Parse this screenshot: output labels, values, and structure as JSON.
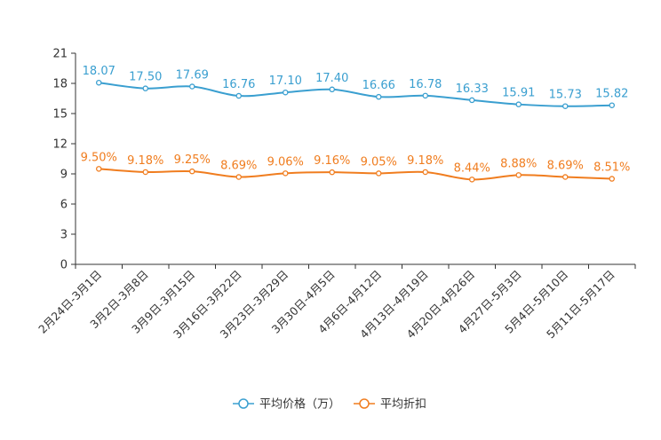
{
  "chart_data": {
    "type": "line",
    "categories": [
      "2月24日-3月1日",
      "3月2日-3月8日",
      "3月9日-3月15日",
      "3月16日-3月22日",
      "3月23日-3月29日",
      "3月30日-4月5日",
      "4月6日-4月12日",
      "4月13日-4月19日",
      "4月20日-4月26日",
      "4月27日-5月3日",
      "5月4日-5月10日",
      "5月11日-5月17日"
    ],
    "series": [
      {
        "name": "平均价格（万）",
        "color": "#3a9fd0",
        "values": [
          18.07,
          17.5,
          17.69,
          16.76,
          17.1,
          17.4,
          16.66,
          16.78,
          16.33,
          15.91,
          15.73,
          15.82
        ],
        "labels": [
          "18.07",
          "17.50",
          "17.69",
          "16.76",
          "17.10",
          "17.40",
          "16.66",
          "16.78",
          "16.33",
          "15.91",
          "15.73",
          "15.82"
        ]
      },
      {
        "name": "平均折扣",
        "color": "#f07d1f",
        "values": [
          9.5,
          9.18,
          9.25,
          8.69,
          9.06,
          9.16,
          9.05,
          9.18,
          8.44,
          8.88,
          8.69,
          8.51
        ],
        "labels": [
          "9.50%",
          "9.18%",
          "9.25%",
          "8.69%",
          "9.06%",
          "9.16%",
          "9.05%",
          "9.18%",
          "8.44%",
          "8.88%",
          "8.69%",
          "8.51%"
        ]
      }
    ],
    "ylim": [
      0,
      21
    ],
    "yticks": [
      "0",
      "3",
      "6",
      "9",
      "12",
      "15",
      "18",
      "21"
    ],
    "title": "",
    "xlabel": "",
    "ylabel": "",
    "legend": "bottom-center"
  }
}
